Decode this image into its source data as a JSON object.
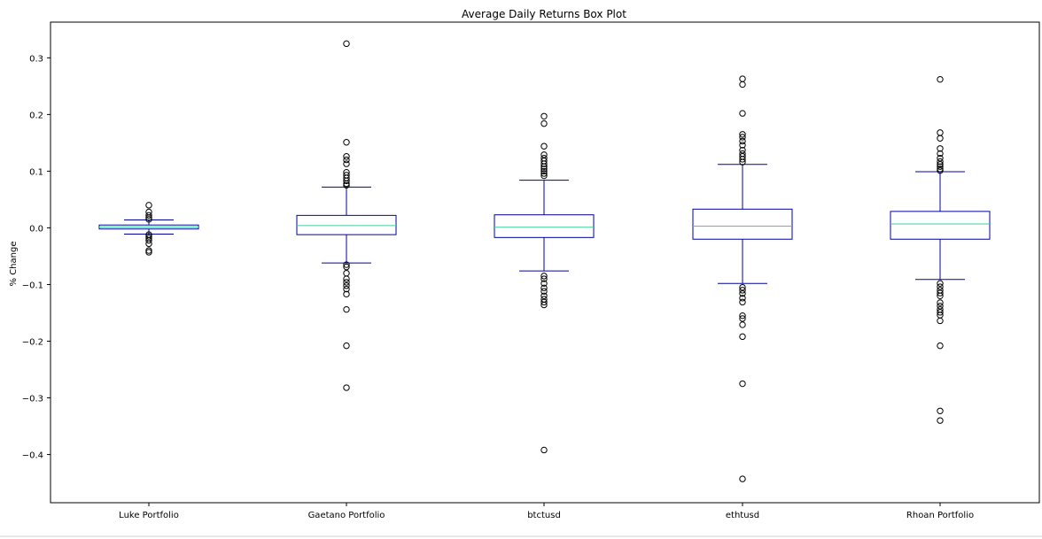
{
  "chart_data": {
    "type": "box",
    "title": "Average Daily Returns Box Plot",
    "xlabel": "",
    "ylabel": "% Change",
    "ylim": [
      -0.485,
      0.363
    ],
    "yticks": [
      0.3,
      0.2,
      0.1,
      0.0,
      -0.1,
      -0.2,
      -0.3,
      -0.4
    ],
    "ytick_labels": [
      "0.3",
      "0.2",
      "0.1",
      "0.0",
      "−0.1",
      "−0.2",
      "−0.3",
      "−0.4"
    ],
    "grid": false,
    "colors": {
      "box": "#0000a0",
      "whisker": "#0000a0",
      "median": "#3ccf9a",
      "flier": "#000000"
    },
    "series": [
      {
        "name": "Luke Portfolio",
        "q1": -0.002,
        "median": 0.0015,
        "q3": 0.005,
        "whisker_low": -0.011,
        "whisker_high": 0.014,
        "fliers": [
          0.04,
          0.028,
          0.022,
          0.018,
          0.015,
          -0.012,
          -0.015,
          -0.018,
          -0.022,
          -0.028,
          -0.04,
          -0.043
        ]
      },
      {
        "name": "Gaetano Portfolio",
        "q1": -0.012,
        "median": 0.004,
        "q3": 0.022,
        "whisker_low": -0.062,
        "whisker_high": 0.072,
        "fliers": [
          0.325,
          0.151,
          0.126,
          0.12,
          0.113,
          0.098,
          0.093,
          0.088,
          0.083,
          0.078,
          0.075,
          -0.065,
          -0.069,
          -0.08,
          -0.09,
          -0.096,
          -0.102,
          -0.108,
          -0.117,
          -0.144,
          -0.208,
          -0.282
        ]
      },
      {
        "name": "btctusd",
        "q1": -0.017,
        "median": 0.001,
        "q3": 0.023,
        "whisker_low": -0.076,
        "whisker_high": 0.084,
        "fliers": [
          0.197,
          0.184,
          0.144,
          0.129,
          0.123,
          0.118,
          0.113,
          0.108,
          0.104,
          0.1,
          0.096,
          0.092,
          -0.085,
          -0.09,
          -0.098,
          -0.106,
          -0.112,
          -0.12,
          -0.126,
          -0.131,
          -0.136,
          -0.392
        ]
      },
      {
        "name": "ethtusd",
        "q1": -0.02,
        "median": 0.003,
        "q3": 0.033,
        "whisker_low": -0.098,
        "whisker_high": 0.112,
        "fliers": [
          0.263,
          0.253,
          0.202,
          0.165,
          0.16,
          0.153,
          0.146,
          0.137,
          0.131,
          0.126,
          0.121,
          0.116,
          -0.105,
          -0.11,
          -0.116,
          -0.124,
          -0.131,
          -0.155,
          -0.16,
          -0.171,
          -0.192,
          -0.275,
          -0.443
        ]
      },
      {
        "name": "Rhoan Portfolio",
        "q1": -0.02,
        "median": 0.007,
        "q3": 0.029,
        "whisker_low": -0.091,
        "whisker_high": 0.099,
        "fliers": [
          0.262,
          0.168,
          0.158,
          0.14,
          0.131,
          0.123,
          0.117,
          0.112,
          0.108,
          0.104,
          0.101,
          -0.098,
          -0.104,
          -0.11,
          -0.115,
          -0.12,
          -0.132,
          -0.138,
          -0.144,
          -0.149,
          -0.154,
          -0.164,
          -0.208,
          -0.323,
          -0.34
        ]
      }
    ]
  }
}
